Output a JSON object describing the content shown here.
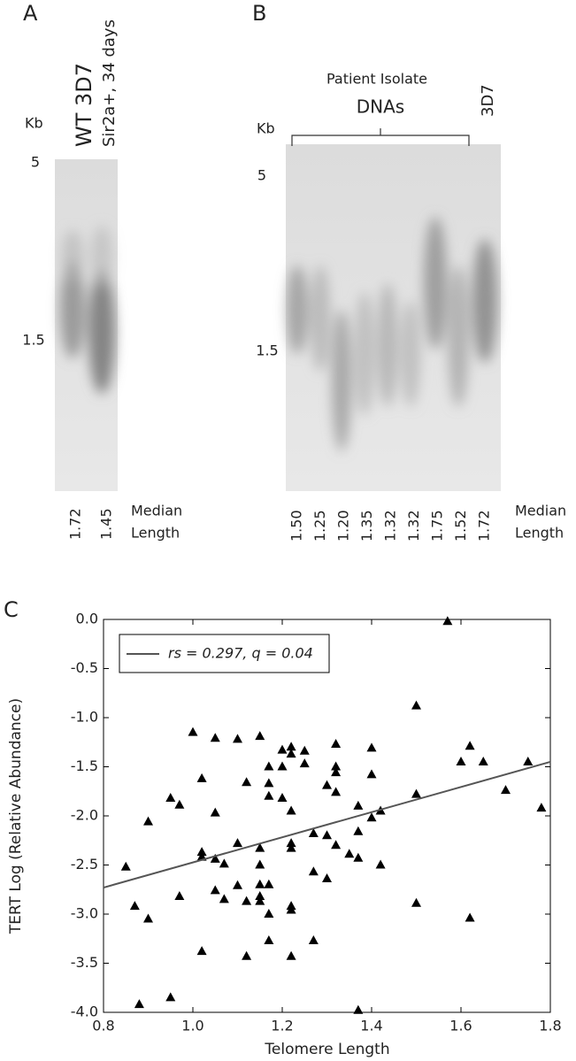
{
  "panel_a": {
    "label": "A",
    "lanes": [
      "WT 3D7",
      "Sir2a+, 34 days"
    ],
    "unit": "Kb",
    "markers": [
      "5",
      "1.5"
    ],
    "medians": [
      "1.72",
      "1.45"
    ],
    "median_caption": [
      "Median",
      "Length"
    ]
  },
  "panel_b": {
    "label": "B",
    "group_label": [
      "Patient Isolate",
      "DNAs"
    ],
    "control": "3D7",
    "unit": "Kb",
    "markers": [
      "5",
      "1.5"
    ],
    "medians": [
      "1.50",
      "1.25",
      "1.20",
      "1.35",
      "1.32",
      "1.32",
      "1.75",
      "1.52",
      "1.72"
    ],
    "median_caption": [
      "Median",
      "Length"
    ]
  },
  "chart_data": {
    "type": "scatter",
    "panel_label": "C",
    "xlabel": "Telomere Length",
    "ylabel": "TERT Log (Relative Abundance)",
    "xlim": [
      0.8,
      1.8
    ],
    "ylim": [
      -4.0,
      0.0
    ],
    "xticks": [
      0.8,
      {
        "value": 1.0,
        "label": "1.0"
      },
      1.2,
      1.4,
      1.6,
      1.8
    ],
    "yticks": [
      {
        "value": -4.0,
        "label": "-4.0"
      },
      -3.5,
      {
        "value": -3.0,
        "label": "-3.0"
      },
      -2.5,
      {
        "value": -2.0,
        "label": "-2.0"
      },
      -1.5,
      {
        "value": -1.0,
        "label": "-1.0"
      },
      -0.5,
      {
        "value": 0.0,
        "label": "0.0"
      }
    ],
    "legend": "upper left",
    "series": [
      {
        "color": "#000000",
        "x": [
          0.85,
          0.87,
          0.88,
          0.9,
          0.9,
          0.95,
          0.95,
          0.97,
          0.97,
          1.0,
          1.02,
          1.02,
          1.02,
          1.02,
          1.05,
          1.05,
          1.05,
          1.05,
          1.07,
          1.07,
          1.1,
          1.1,
          1.1,
          1.12,
          1.12,
          1.12,
          1.15,
          1.15,
          1.15,
          1.15,
          1.15,
          1.15,
          1.17,
          1.17,
          1.17,
          1.17,
          1.17,
          1.17,
          1.2,
          1.2,
          1.2,
          1.22,
          1.22,
          1.22,
          1.22,
          1.22,
          1.22,
          1.22,
          1.22,
          1.25,
          1.25,
          1.27,
          1.27,
          1.27,
          1.3,
          1.3,
          1.3,
          1.32,
          1.32,
          1.32,
          1.32,
          1.32,
          1.35,
          1.37,
          1.37,
          1.37,
          1.37,
          1.4,
          1.4,
          1.4,
          1.42,
          1.42,
          1.5,
          1.5,
          1.5,
          1.57,
          1.6,
          1.62,
          1.62,
          1.65,
          1.7,
          1.75,
          1.78
        ],
        "values": [
          -2.52,
          -2.92,
          -3.92,
          -3.05,
          -2.06,
          -1.82,
          -3.85,
          -1.89,
          -2.82,
          -1.15,
          -1.62,
          -2.37,
          -2.42,
          -3.38,
          -1.21,
          -1.97,
          -2.44,
          -2.76,
          -2.49,
          -2.85,
          -1.22,
          -2.28,
          -2.71,
          -1.66,
          -2.87,
          -3.43,
          -1.19,
          -2.33,
          -2.5,
          -2.7,
          -2.82,
          -2.87,
          -1.5,
          -1.67,
          -1.8,
          -2.7,
          -3.0,
          -3.27,
          -1.33,
          -1.5,
          -1.82,
          -1.3,
          -1.37,
          -1.95,
          -2.28,
          -2.33,
          -2.92,
          -2.96,
          -3.43,
          -1.34,
          -1.47,
          -2.18,
          -2.57,
          -3.27,
          -1.69,
          -2.2,
          -2.64,
          -1.27,
          -1.5,
          -1.56,
          -1.76,
          -2.3,
          -2.39,
          -1.9,
          -2.16,
          -2.43,
          -3.98,
          -1.31,
          -1.58,
          -2.02,
          -1.95,
          -2.5,
          -0.88,
          -1.78,
          -2.89,
          -0.02,
          -1.45,
          -1.29,
          -3.04,
          -1.45,
          -1.74,
          -1.45,
          -1.92
        ]
      },
      {
        "name": "rs = 0.297, q = 0.04",
        "color": "#555555",
        "x": [
          0.8,
          1.8
        ],
        "values": [
          -2.73,
          -1.45
        ]
      }
    ]
  }
}
